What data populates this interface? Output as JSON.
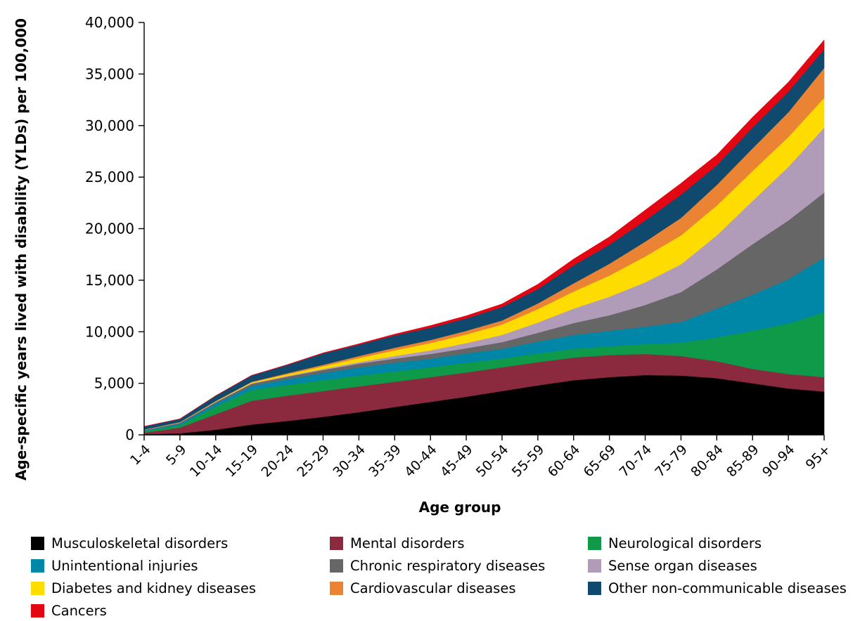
{
  "chart_data": {
    "type": "area",
    "stacked": true,
    "title": "",
    "xlabel": "Age group",
    "ylabel": "Age-specific years lived with disability (YLDs) per 100,000",
    "ylim": [
      0,
      40000
    ],
    "yticks": [
      0,
      5000,
      10000,
      15000,
      20000,
      25000,
      30000,
      35000,
      40000
    ],
    "ytick_labels": [
      "0",
      "5,000",
      "10,000",
      "15,000",
      "20,000",
      "25,000",
      "30,000",
      "35,000",
      "40,000"
    ],
    "grid": false,
    "legend_position": "bottom",
    "categories": [
      "1-4",
      "5-9",
      "10-14",
      "15-19",
      "20-24",
      "25-29",
      "30-34",
      "35-39",
      "40-44",
      "45-49",
      "50-54",
      "55-59",
      "60-64",
      "65-69",
      "70-74",
      "75-79",
      "80-84",
      "85-89",
      "90-94",
      "95+"
    ],
    "series": [
      {
        "name": "Musculoskeletal disorders",
        "color": "#000000",
        "values": [
          60,
          150,
          500,
          1000,
          1350,
          1750,
          2200,
          2700,
          3200,
          3700,
          4250,
          4800,
          5300,
          5600,
          5800,
          5750,
          5500,
          5000,
          4500,
          4200
        ]
      },
      {
        "name": "Mental disorders",
        "color": "#8b2a3e",
        "values": [
          150,
          550,
          1500,
          2300,
          2450,
          2500,
          2500,
          2450,
          2400,
          2350,
          2300,
          2250,
          2200,
          2150,
          2050,
          1900,
          1650,
          1400,
          1400,
          1400
        ]
      },
      {
        "name": "Neurological disorders",
        "color": "#0e9a48",
        "values": [
          150,
          250,
          750,
          1050,
          1050,
          1050,
          1050,
          1000,
          950,
          950,
          850,
          850,
          850,
          850,
          950,
          1300,
          2300,
          3700,
          4900,
          6300
        ]
      },
      {
        "name": "Unintentional injuries",
        "color": "#0087a8",
        "values": [
          50,
          120,
          280,
          400,
          550,
          700,
          800,
          850,
          850,
          900,
          950,
          1150,
          1350,
          1500,
          1700,
          2000,
          2800,
          3500,
          4300,
          5300
        ]
      },
      {
        "name": "Chronic respiratory diseases",
        "color": "#666666",
        "values": [
          60,
          100,
          150,
          200,
          250,
          300,
          350,
          400,
          450,
          500,
          650,
          850,
          1150,
          1500,
          2100,
          2900,
          3800,
          4900,
          5700,
          6300
        ]
      },
      {
        "name": "Sense organ diseases",
        "color": "#b09bb8",
        "values": [
          20,
          30,
          40,
          60,
          80,
          100,
          150,
          250,
          350,
          500,
          700,
          1000,
          1400,
          1800,
          2200,
          2700,
          3300,
          4200,
          5200,
          6300
        ]
      },
      {
        "name": "Diabetes and kidney diseases",
        "color": "#ffdc00",
        "values": [
          10,
          20,
          40,
          80,
          150,
          250,
          400,
          550,
          700,
          850,
          1000,
          1300,
          1650,
          2050,
          2500,
          2800,
          2900,
          2900,
          2900,
          2900
        ]
      },
      {
        "name": "Cardiovascular diseases",
        "color": "#ea8333",
        "values": [
          10,
          20,
          30,
          60,
          100,
          150,
          200,
          250,
          300,
          350,
          400,
          550,
          800,
          1150,
          1450,
          1700,
          2000,
          2200,
          2400,
          2900
        ]
      },
      {
        "name": "Other non-communicable diseases",
        "color": "#0f4a6e",
        "values": [
          300,
          300,
          500,
          600,
          800,
          1100,
          1100,
          1200,
          1200,
          1200,
          1300,
          1400,
          1750,
          1850,
          2050,
          2250,
          1900,
          2000,
          2000,
          1800
        ]
      },
      {
        "name": "Cancers",
        "color": "#e30613",
        "values": [
          10,
          10,
          10,
          20,
          30,
          50,
          80,
          120,
          200,
          250,
          300,
          450,
          600,
          750,
          1000,
          1100,
          1000,
          1000,
          900,
          900
        ]
      }
    ]
  }
}
